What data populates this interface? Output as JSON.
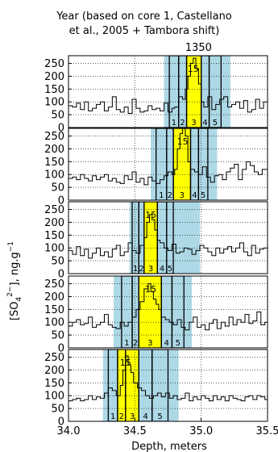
{
  "chart_data": {
    "type": "line",
    "title_lines": [
      "Year (based on core 1, Castellano",
      "et al., 2005 + Tambora shift)"
    ],
    "top_axis_label": "1350",
    "top_axis_value": 34.98,
    "xlabel": "Depth, meters",
    "ylabel": "[SO",
    "ylabel_sub": "4",
    "ylabel_sup": "2−",
    "ylabel_tail": "], ng.g",
    "ylabel_tail_sup": "−1",
    "xlim": [
      34.0,
      35.5
    ],
    "ylim": [
      0,
      280
    ],
    "x_ticks": [
      "34.0",
      "34.5",
      "35.0",
      "35.5"
    ],
    "y_ticks": [
      "0",
      "50",
      "100",
      "150",
      "200",
      "250"
    ],
    "grid": true,
    "colors": {
      "band": "#add8e6",
      "window": "#ffff00",
      "line": "#000000",
      "box": "#000000"
    },
    "panels": [
      {
        "peak_x": 34.94,
        "peak_label": "15",
        "band": [
          34.72,
          35.22
        ],
        "yellow": [
          34.89,
          35.0
        ],
        "boxes": [
          [
            34.76,
            34.83
          ],
          [
            34.83,
            34.89
          ],
          [
            34.89,
            35.0
          ],
          [
            35.0,
            35.06
          ],
          [
            35.06,
            35.15
          ]
        ],
        "box_labels": [
          "1",
          "2",
          "3",
          "4",
          "5"
        ]
      },
      {
        "peak_x": 34.86,
        "peak_label": "15",
        "band": [
          34.62,
          35.12
        ],
        "yellow": [
          34.79,
          34.92
        ],
        "boxes": [
          [
            34.66,
            34.74
          ],
          [
            34.74,
            34.79
          ],
          [
            34.79,
            34.92
          ],
          [
            34.92,
            34.98
          ],
          [
            34.98,
            35.05
          ]
        ],
        "box_labels": [
          "1",
          "2",
          "3",
          "4",
          "5"
        ]
      },
      {
        "peak_x": 34.62,
        "peak_label": "15",
        "band": [
          34.46,
          34.99
        ],
        "yellow": [
          34.57,
          34.67
        ],
        "boxes": [
          [
            34.48,
            34.53
          ],
          [
            34.53,
            34.57
          ],
          [
            34.57,
            34.67
          ],
          [
            34.67,
            34.74
          ],
          [
            34.74,
            34.79
          ]
        ],
        "box_labels": [
          "1",
          "2",
          "3",
          "4",
          "5"
        ]
      },
      {
        "peak_x": 34.62,
        "peak_label": "15",
        "band": [
          34.34,
          34.93
        ],
        "yellow": [
          34.53,
          34.7
        ],
        "boxes": [
          [
            34.4,
            34.48
          ],
          [
            34.48,
            34.53
          ],
          [
            34.53,
            34.7
          ],
          [
            34.7,
            34.78
          ],
          [
            34.78,
            34.87
          ]
        ],
        "box_labels": [
          "1",
          "2",
          "3",
          "4",
          "5"
        ]
      },
      {
        "peak_x": 34.43,
        "peak_label": "15",
        "band": [
          34.26,
          34.83
        ],
        "yellow": [
          34.37,
          34.53
        ],
        "boxes": [
          [
            34.3,
            34.37
          ],
          [
            34.37,
            34.43
          ],
          [
            34.43,
            34.53
          ],
          [
            34.53,
            34.63
          ],
          [
            34.63,
            34.75
          ]
        ],
        "box_labels": [
          "1",
          "2",
          "3",
          "4",
          "5"
        ]
      }
    ],
    "series": [
      {
        "x": [
          34.0,
          34.03,
          34.06,
          34.09,
          34.12,
          34.15,
          34.18,
          34.21,
          34.24,
          34.27,
          34.3,
          34.33,
          34.36,
          34.39,
          34.42,
          34.45,
          34.48,
          34.51,
          34.54,
          34.57,
          34.6,
          34.63,
          34.66,
          34.69,
          34.72,
          34.75,
          34.78,
          34.8,
          34.83,
          34.86,
          34.88,
          34.9,
          34.92,
          34.94,
          34.96,
          34.98,
          35.0,
          35.02,
          35.05,
          35.08,
          35.11,
          35.14,
          35.17,
          35.2,
          35.23,
          35.26,
          35.29,
          35.32,
          35.35,
          35.38,
          35.41,
          35.44,
          35.47,
          35.5
        ],
        "y": [
          85,
          80,
          95,
          70,
          100,
          65,
          75,
          90,
          100,
          65,
          80,
          120,
          70,
          60,
          80,
          55,
          110,
          75,
          60,
          65,
          85,
          70,
          75,
          65,
          95,
          60,
          75,
          80,
          120,
          110,
          150,
          200,
          250,
          270,
          230,
          170,
          100,
          80,
          120,
          70,
          90,
          110,
          120,
          80,
          90,
          100,
          75,
          105,
          60,
          70,
          110,
          75,
          100,
          85
        ]
      },
      {
        "x": [
          34.0,
          34.03,
          34.06,
          34.09,
          34.12,
          34.15,
          34.18,
          34.21,
          34.24,
          34.27,
          34.3,
          34.33,
          34.36,
          34.39,
          34.42,
          34.45,
          34.48,
          34.51,
          34.54,
          34.57,
          34.6,
          34.63,
          34.66,
          34.69,
          34.72,
          34.75,
          34.78,
          34.8,
          34.82,
          34.84,
          34.86,
          34.88,
          34.9,
          34.92,
          34.95,
          34.98,
          35.01,
          35.04,
          35.07,
          35.1,
          35.13,
          35.16,
          35.19,
          35.22,
          35.25,
          35.28,
          35.31,
          35.34,
          35.37,
          35.4,
          35.43,
          35.46,
          35.5
        ],
        "y": [
          85,
          90,
          80,
          100,
          85,
          75,
          95,
          80,
          90,
          100,
          75,
          85,
          70,
          65,
          95,
          80,
          110,
          70,
          85,
          60,
          90,
          75,
          65,
          80,
          95,
          110,
          100,
          120,
          200,
          260,
          280,
          250,
          150,
          120,
          110,
          100,
          130,
          90,
          70,
          95,
          100,
          80,
          110,
          125,
          140,
          80,
          120,
          150,
          135,
          110,
          100,
          120,
          140
        ]
      },
      {
        "x": [
          34.0,
          34.03,
          34.06,
          34.09,
          34.12,
          34.15,
          34.18,
          34.21,
          34.24,
          34.27,
          34.3,
          34.33,
          34.36,
          34.39,
          34.42,
          34.45,
          34.48,
          34.51,
          34.54,
          34.57,
          34.59,
          34.61,
          34.63,
          34.65,
          34.67,
          34.69,
          34.72,
          34.75,
          34.78,
          34.81,
          34.84,
          34.87,
          34.9,
          34.93,
          34.96,
          34.99,
          35.02,
          35.05,
          35.08,
          35.11,
          35.14,
          35.17,
          35.2,
          35.23,
          35.26,
          35.29,
          35.32,
          35.35,
          35.38,
          35.41,
          35.44,
          35.47,
          35.5
        ],
        "y": [
          90,
          75,
          105,
          70,
          95,
          60,
          80,
          100,
          70,
          85,
          65,
          95,
          110,
          70,
          85,
          120,
          90,
          80,
          110,
          140,
          200,
          230,
          210,
          170,
          130,
          120,
          100,
          90,
          115,
          80,
          85,
          100,
          95,
          75,
          90,
          110,
          100,
          85,
          70,
          100,
          80,
          95,
          105,
          85,
          100,
          120,
          85,
          70,
          110,
          80,
          95,
          100,
          90
        ]
      },
      {
        "x": [
          34.0,
          34.03,
          34.06,
          34.09,
          34.12,
          34.15,
          34.18,
          34.21,
          34.24,
          34.27,
          34.3,
          34.33,
          34.36,
          34.39,
          34.42,
          34.45,
          34.48,
          34.51,
          34.54,
          34.57,
          34.6,
          34.62,
          34.64,
          34.66,
          34.68,
          34.7,
          34.73,
          34.76,
          34.79,
          34.82,
          34.85,
          34.88,
          34.91,
          34.94,
          34.97,
          35.0,
          35.03,
          35.06,
          35.09,
          35.12,
          35.15,
          35.18,
          35.21,
          35.24,
          35.27,
          35.3,
          35.33,
          35.36,
          35.39,
          35.42,
          35.45,
          35.48,
          35.5
        ],
        "y": [
          85,
          100,
          110,
          90,
          95,
          120,
          80,
          90,
          100,
          130,
          90,
          80,
          75,
          100,
          85,
          100,
          120,
          150,
          180,
          230,
          250,
          220,
          190,
          170,
          150,
          120,
          110,
          100,
          90,
          110,
          80,
          70,
          100,
          120,
          80,
          90,
          70,
          95,
          110,
          75,
          100,
          85,
          120,
          90,
          110,
          100,
          130,
          95,
          105,
          140,
          90,
          100,
          125
        ]
      },
      {
        "x": [
          34.0,
          34.03,
          34.06,
          34.09,
          34.12,
          34.15,
          34.18,
          34.21,
          34.24,
          34.27,
          34.3,
          34.33,
          34.36,
          34.39,
          34.41,
          34.43,
          34.45,
          34.47,
          34.49,
          34.52,
          34.55,
          34.58,
          34.61,
          34.64,
          34.67,
          34.7,
          34.73,
          34.76,
          34.79,
          34.82,
          34.85,
          34.88,
          34.91,
          34.94,
          34.97,
          35.0,
          35.03,
          35.06,
          35.09,
          35.12,
          35.15,
          35.18,
          35.21,
          35.24,
          35.27,
          35.3,
          35.33,
          35.36,
          35.39,
          35.42,
          35.45,
          35.48,
          35.5
        ],
        "y": [
          80,
          85,
          90,
          80,
          85,
          100,
          85,
          95,
          90,
          110,
          130,
          120,
          100,
          140,
          200,
          255,
          220,
          190,
          150,
          130,
          120,
          100,
          90,
          100,
          110,
          95,
          110,
          90,
          100,
          85,
          90,
          110,
          80,
          95,
          85,
          100,
          90,
          80,
          100,
          85,
          95,
          80,
          100,
          90,
          85,
          80,
          95,
          100,
          85,
          100,
          95,
          85,
          90
        ]
      }
    ]
  }
}
